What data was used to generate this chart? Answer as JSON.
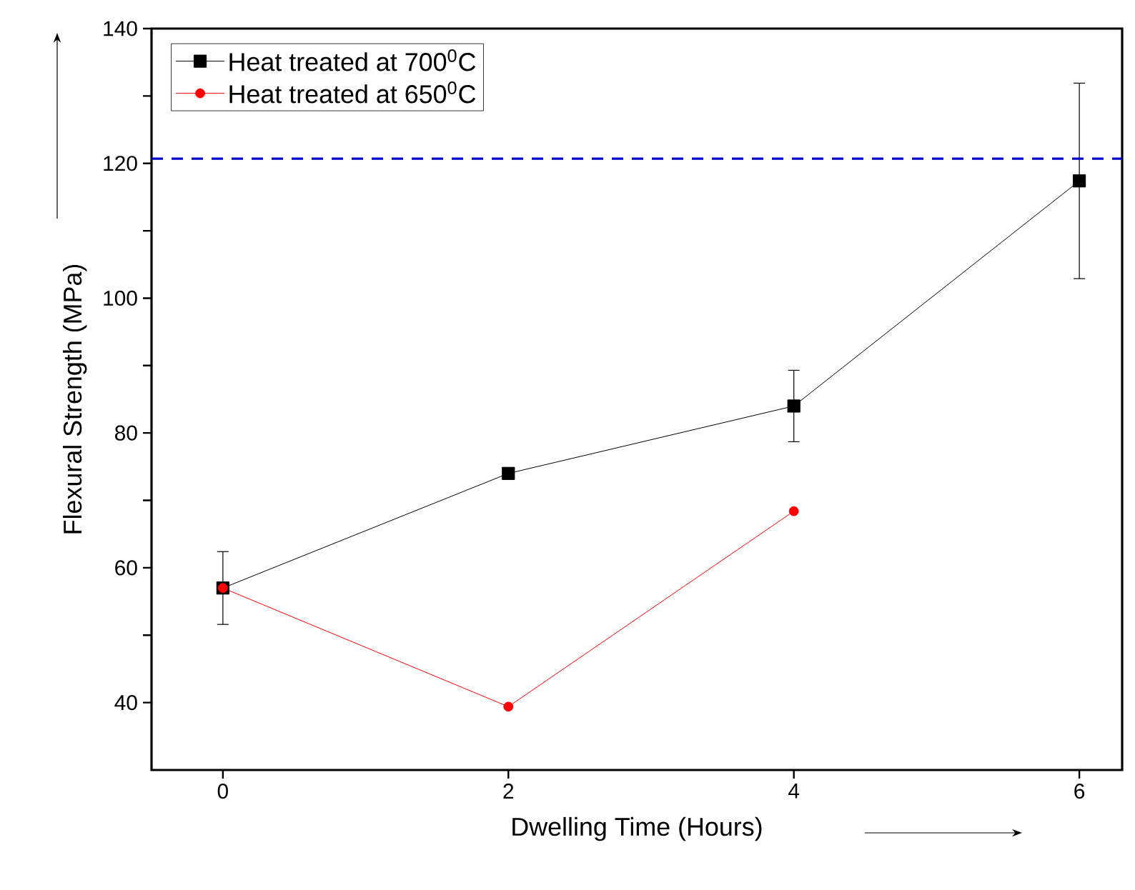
{
  "chart_data": {
    "type": "line",
    "xlabel": "Dwelling Time (Hours)",
    "ylabel": "Flexural Strength (MPa)",
    "xlim": [
      -0.5,
      6.3
    ],
    "xticks": [
      0,
      2,
      4,
      6
    ],
    "ylim": [
      30,
      140
    ],
    "yticks": [
      {
        "value": 40,
        "label": "40"
      },
      {
        "value": 50,
        "label": null
      },
      {
        "value": 60,
        "label": "60"
      },
      {
        "value": 70,
        "label": null
      },
      {
        "value": 80,
        "label": "80"
      },
      {
        "value": 90,
        "label": null
      },
      {
        "value": 100,
        "label": "100"
      },
      {
        "value": 110,
        "label": null
      },
      {
        "value": 120,
        "label": "120"
      },
      {
        "value": 130,
        "label": null
      },
      {
        "value": 140,
        "label": "140"
      }
    ],
    "x": [
      0,
      2,
      4,
      6
    ],
    "series": [
      {
        "name": "Heat treated at 700$^{0}$C",
        "color": "#000000",
        "marker": "square",
        "values": [
          57,
          74,
          84,
          117.4
        ],
        "errors": [
          5.4,
          null,
          5.3,
          14.5
        ]
      },
      {
        "name": "Heat treated at 650$^{0}$C",
        "color": "#ff0000",
        "marker": "circle",
        "values": [
          57,
          39.4,
          68.4,
          null
        ]
      }
    ],
    "ref_lines": [
      {
        "axis": "y",
        "value": 120.7,
        "color": "#0000cc",
        "line_style": "dashed"
      }
    ],
    "legend": "top left",
    "grid": false,
    "line_style": "solid"
  }
}
